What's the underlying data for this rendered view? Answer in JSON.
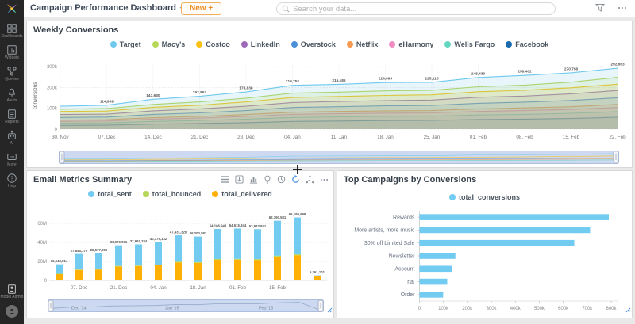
{
  "topbar": {
    "title": "Campaign Performance Dashboard",
    "new_button": "New +",
    "search_placeholder": "Search your data..."
  },
  "sidebar": {
    "items": [
      {
        "id": "dashboards",
        "label": "Dashboards"
      },
      {
        "id": "widgets",
        "label": "Widgets"
      },
      {
        "id": "queries",
        "label": "Queries"
      },
      {
        "id": "alerts",
        "label": "Alerts"
      },
      {
        "id": "reports",
        "label": "Reports"
      },
      {
        "id": "ai",
        "label": "AI"
      },
      {
        "id": "more",
        "label": "More"
      },
      {
        "id": "help",
        "label": "Help"
      }
    ],
    "admin": {
      "id": "admin",
      "label": "Model Admin"
    }
  },
  "chart_data": [
    {
      "id": "weekly_conversions",
      "type": "line",
      "title": "Weekly Conversions",
      "ylabel": "conversions",
      "legend_position": "top",
      "grid": true,
      "ylim": [
        0,
        320000
      ],
      "ytick_values": [
        0,
        100000,
        200000,
        300000
      ],
      "yticks": [
        "0",
        "100k",
        "200k",
        "300k"
      ],
      "x": [
        "30. Nov",
        "07. Dec",
        "14. Dec",
        "21. Dec",
        "28. Dec",
        "04. Jan",
        "11. Jan",
        "18. Jan",
        "25. Jan",
        "01. Feb",
        "08. Feb",
        "15. Feb",
        "22. Feb"
      ],
      "series": [
        {
          "name": "Target",
          "color": "#6fc9ee",
          "values": [
            110000,
            114969,
            143630,
            157867,
            178838,
            210752,
            215486,
            224099,
            225115,
            248439,
            258402,
            270756,
            292863
          ],
          "labels": [
            "",
            "114,969",
            "143,630",
            "157,867",
            "178,838",
            "210,752",
            "215,486",
            "224,099",
            "225,115",
            "248,439",
            "258,402",
            "270,756",
            "292,863"
          ]
        },
        {
          "name": "Macy's",
          "color": "#b6d758",
          "values": [
            96000,
            99000,
            119000,
            131000,
            149000,
            173000,
            178000,
            184000,
            187000,
            204000,
            212000,
            226000,
            249000
          ]
        },
        {
          "name": "Costco",
          "color": "#fcc110",
          "values": [
            85000,
            87000,
            105000,
            115000,
            131000,
            152000,
            157000,
            162000,
            165000,
            180000,
            187000,
            199000,
            216000
          ]
        },
        {
          "name": "LinkedIn",
          "color": "#9c6ab8",
          "values": [
            70000,
            72000,
            88000,
            97000,
            110000,
            128000,
            133000,
            137000,
            140000,
            153000,
            159000,
            170000,
            186000
          ]
        },
        {
          "name": "Overstock",
          "color": "#4a90d9",
          "values": [
            56000,
            58000,
            71000,
            78000,
            89000,
            104000,
            108000,
            112000,
            114000,
            124000,
            130000,
            138000,
            151000
          ]
        },
        {
          "name": "Netflix",
          "color": "#f79a50",
          "values": [
            43000,
            45000,
            55000,
            61000,
            70000,
            81000,
            85000,
            88000,
            89000,
            97000,
            102000,
            108000,
            119000
          ]
        },
        {
          "name": "eHarmony",
          "color": "#f08cc1",
          "values": [
            37000,
            39000,
            48000,
            53000,
            61000,
            71000,
            74000,
            77000,
            78000,
            85000,
            89000,
            95000,
            104000
          ]
        },
        {
          "name": "Wells Fargo",
          "color": "#63d6bf",
          "values": [
            29000,
            30000,
            37000,
            41000,
            48000,
            56000,
            59000,
            61000,
            62000,
            68000,
            71000,
            76000,
            84000
          ]
        },
        {
          "name": "Facebook",
          "color": "#1b6aad",
          "values": [
            18000,
            19000,
            24000,
            27000,
            31000,
            37000,
            39000,
            41000,
            42000,
            46000,
            48000,
            51000,
            57000
          ]
        }
      ]
    },
    {
      "id": "email_metrics",
      "type": "bar-stacked",
      "title": "Email Metrics Summary",
      "legend_position": "top",
      "grid": true,
      "ylim": [
        0,
        70000000
      ],
      "ytick_values": [
        0,
        20000000,
        40000000,
        60000000
      ],
      "yticks": [
        "0",
        "20M",
        "40M",
        "60M"
      ],
      "xticks": [
        "07. Dec",
        "21. Dec",
        "04. Jan",
        "18. Jan",
        "01. Feb",
        "15. Feb"
      ],
      "xtick_indices": [
        1,
        3,
        5,
        7,
        9,
        11
      ],
      "totals_labels": [
        "16,943,814",
        "27,845,370",
        "28,577,059",
        "36,976,901",
        "37,915,334",
        "40,379,132",
        "47,431,320",
        "46,200,883",
        "54,166,948",
        "54,615,344",
        "53,943,971",
        "62,790,581",
        "66,199,699",
        "5,361,101"
      ],
      "stack_order": [
        "total_delivered",
        "total_bounced",
        "total_sent"
      ],
      "series": [
        {
          "name": "total_sent",
          "color": "#72cbf1",
          "values": [
            9843814,
            16345370,
            16777059,
            21676901,
            22215334,
            23679132,
            27731320,
            27000883,
            31666948,
            32015344,
            31543971,
            36790581,
            38799699,
            611101
          ]
        },
        {
          "name": "total_bounced",
          "color": "#b6d758",
          "values": [
            300000,
            400000,
            400000,
            500000,
            500000,
            600000,
            700000,
            700000,
            800000,
            800000,
            800000,
            900000,
            900000,
            150000
          ]
        },
        {
          "name": "total_delivered",
          "color": "#ffb005",
          "values": [
            6800000,
            11100000,
            11400000,
            14800000,
            15200000,
            16100000,
            19000000,
            18500000,
            21700000,
            21800000,
            21600000,
            25100000,
            26500000,
            4600000
          ]
        }
      ],
      "navigator_labels": [
        "Dec '14",
        "Jan '15",
        "Feb '15"
      ]
    },
    {
      "id": "top_campaigns",
      "type": "bar-horizontal",
      "title": "Top Campaigns by Conversions",
      "legend_position": "top",
      "xlim": [
        0,
        830000
      ],
      "xtick_values": [
        0,
        100000,
        200000,
        300000,
        400000,
        500000,
        600000,
        700000,
        800000
      ],
      "xticks": [
        "0",
        "100k",
        "200k",
        "300k",
        "400k",
        "500k",
        "600k",
        "700k",
        "800k"
      ],
      "categories": [
        "Rewards",
        "More artists, more music",
        "30% off Limited Sale",
        "Newsletter",
        "Account",
        "Trial",
        "Order"
      ],
      "series": [
        {
          "name": "total_conversions",
          "color": "#72cbf1",
          "values": [
            790000,
            712000,
            646000,
            150000,
            136000,
            116000,
            99000
          ]
        }
      ]
    }
  ]
}
